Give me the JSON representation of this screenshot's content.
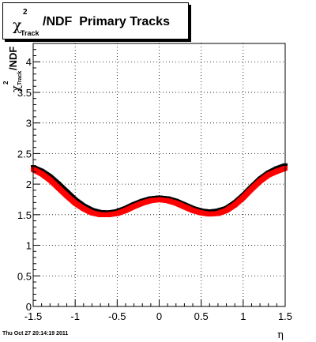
{
  "title": {
    "symbol": "χ",
    "superscript": "2",
    "subscript": "Track",
    "rest": "/NDF  Primary Tracks"
  },
  "ylabel": {
    "symbol": "χ",
    "superscript": "2",
    "subscript": "Track",
    "rest": "/NDF"
  },
  "xlabel": "η",
  "footer": "Thu Oct 27 20:14:19 2011",
  "colors": {
    "series_black": "#000000",
    "series_red": "#ff0000",
    "axis": "#000000",
    "grid": "#000000"
  },
  "chart_data": {
    "type": "scatter",
    "xlim": [
      -1.5,
      1.5
    ],
    "ylim": [
      0,
      4.3
    ],
    "grid": true,
    "x_ticks": [
      "-1.5",
      "-1",
      "-0.5",
      "0",
      "0.5",
      "1",
      "1.5"
    ],
    "x_tick_values": [
      -1.5,
      -1,
      -0.5,
      0,
      0.5,
      1,
      1.5
    ],
    "y_ticks": [
      "0",
      "0.5",
      "1",
      "1.5",
      "2",
      "2.5",
      "3",
      "3.5",
      "4"
    ],
    "y_tick_values": [
      0,
      0.5,
      1,
      1.5,
      2,
      2.5,
      3,
      3.5,
      4
    ],
    "series": [
      {
        "color": "black",
        "x": [
          -1.5,
          -1.4,
          -1.3,
          -1.2,
          -1.1,
          -1.0,
          -0.9,
          -0.8,
          -0.7,
          -0.6,
          -0.5,
          -0.4,
          -0.3,
          -0.2,
          -0.1,
          0.0,
          0.1,
          0.2,
          0.3,
          0.4,
          0.5,
          0.6,
          0.7,
          0.8,
          0.9,
          1.0,
          1.1,
          1.2,
          1.3,
          1.4,
          1.5
        ],
        "y": [
          2.27,
          2.21,
          2.12,
          2.0,
          1.87,
          1.74,
          1.64,
          1.57,
          1.535,
          1.53,
          1.55,
          1.6,
          1.665,
          1.72,
          1.76,
          1.775,
          1.76,
          1.72,
          1.66,
          1.6,
          1.56,
          1.545,
          1.56,
          1.6,
          1.69,
          1.81,
          1.95,
          2.08,
          2.18,
          2.25,
          2.3
        ]
      },
      {
        "color": "red",
        "x": [
          -1.5,
          -1.4,
          -1.3,
          -1.2,
          -1.1,
          -1.0,
          -0.9,
          -0.8,
          -0.7,
          -0.6,
          -0.5,
          -0.4,
          -0.3,
          -0.2,
          -0.1,
          0.0,
          0.1,
          0.2,
          0.3,
          0.4,
          0.5,
          0.6,
          0.7,
          0.8,
          0.9,
          1.0,
          1.1,
          1.2,
          1.3,
          1.4,
          1.5
        ],
        "y": [
          2.24,
          2.17,
          2.07,
          1.94,
          1.81,
          1.69,
          1.6,
          1.53,
          1.5,
          1.5,
          1.52,
          1.57,
          1.635,
          1.69,
          1.73,
          1.745,
          1.73,
          1.69,
          1.63,
          1.57,
          1.53,
          1.51,
          1.52,
          1.57,
          1.66,
          1.78,
          1.92,
          2.05,
          2.15,
          2.21,
          2.26
        ]
      }
    ]
  }
}
